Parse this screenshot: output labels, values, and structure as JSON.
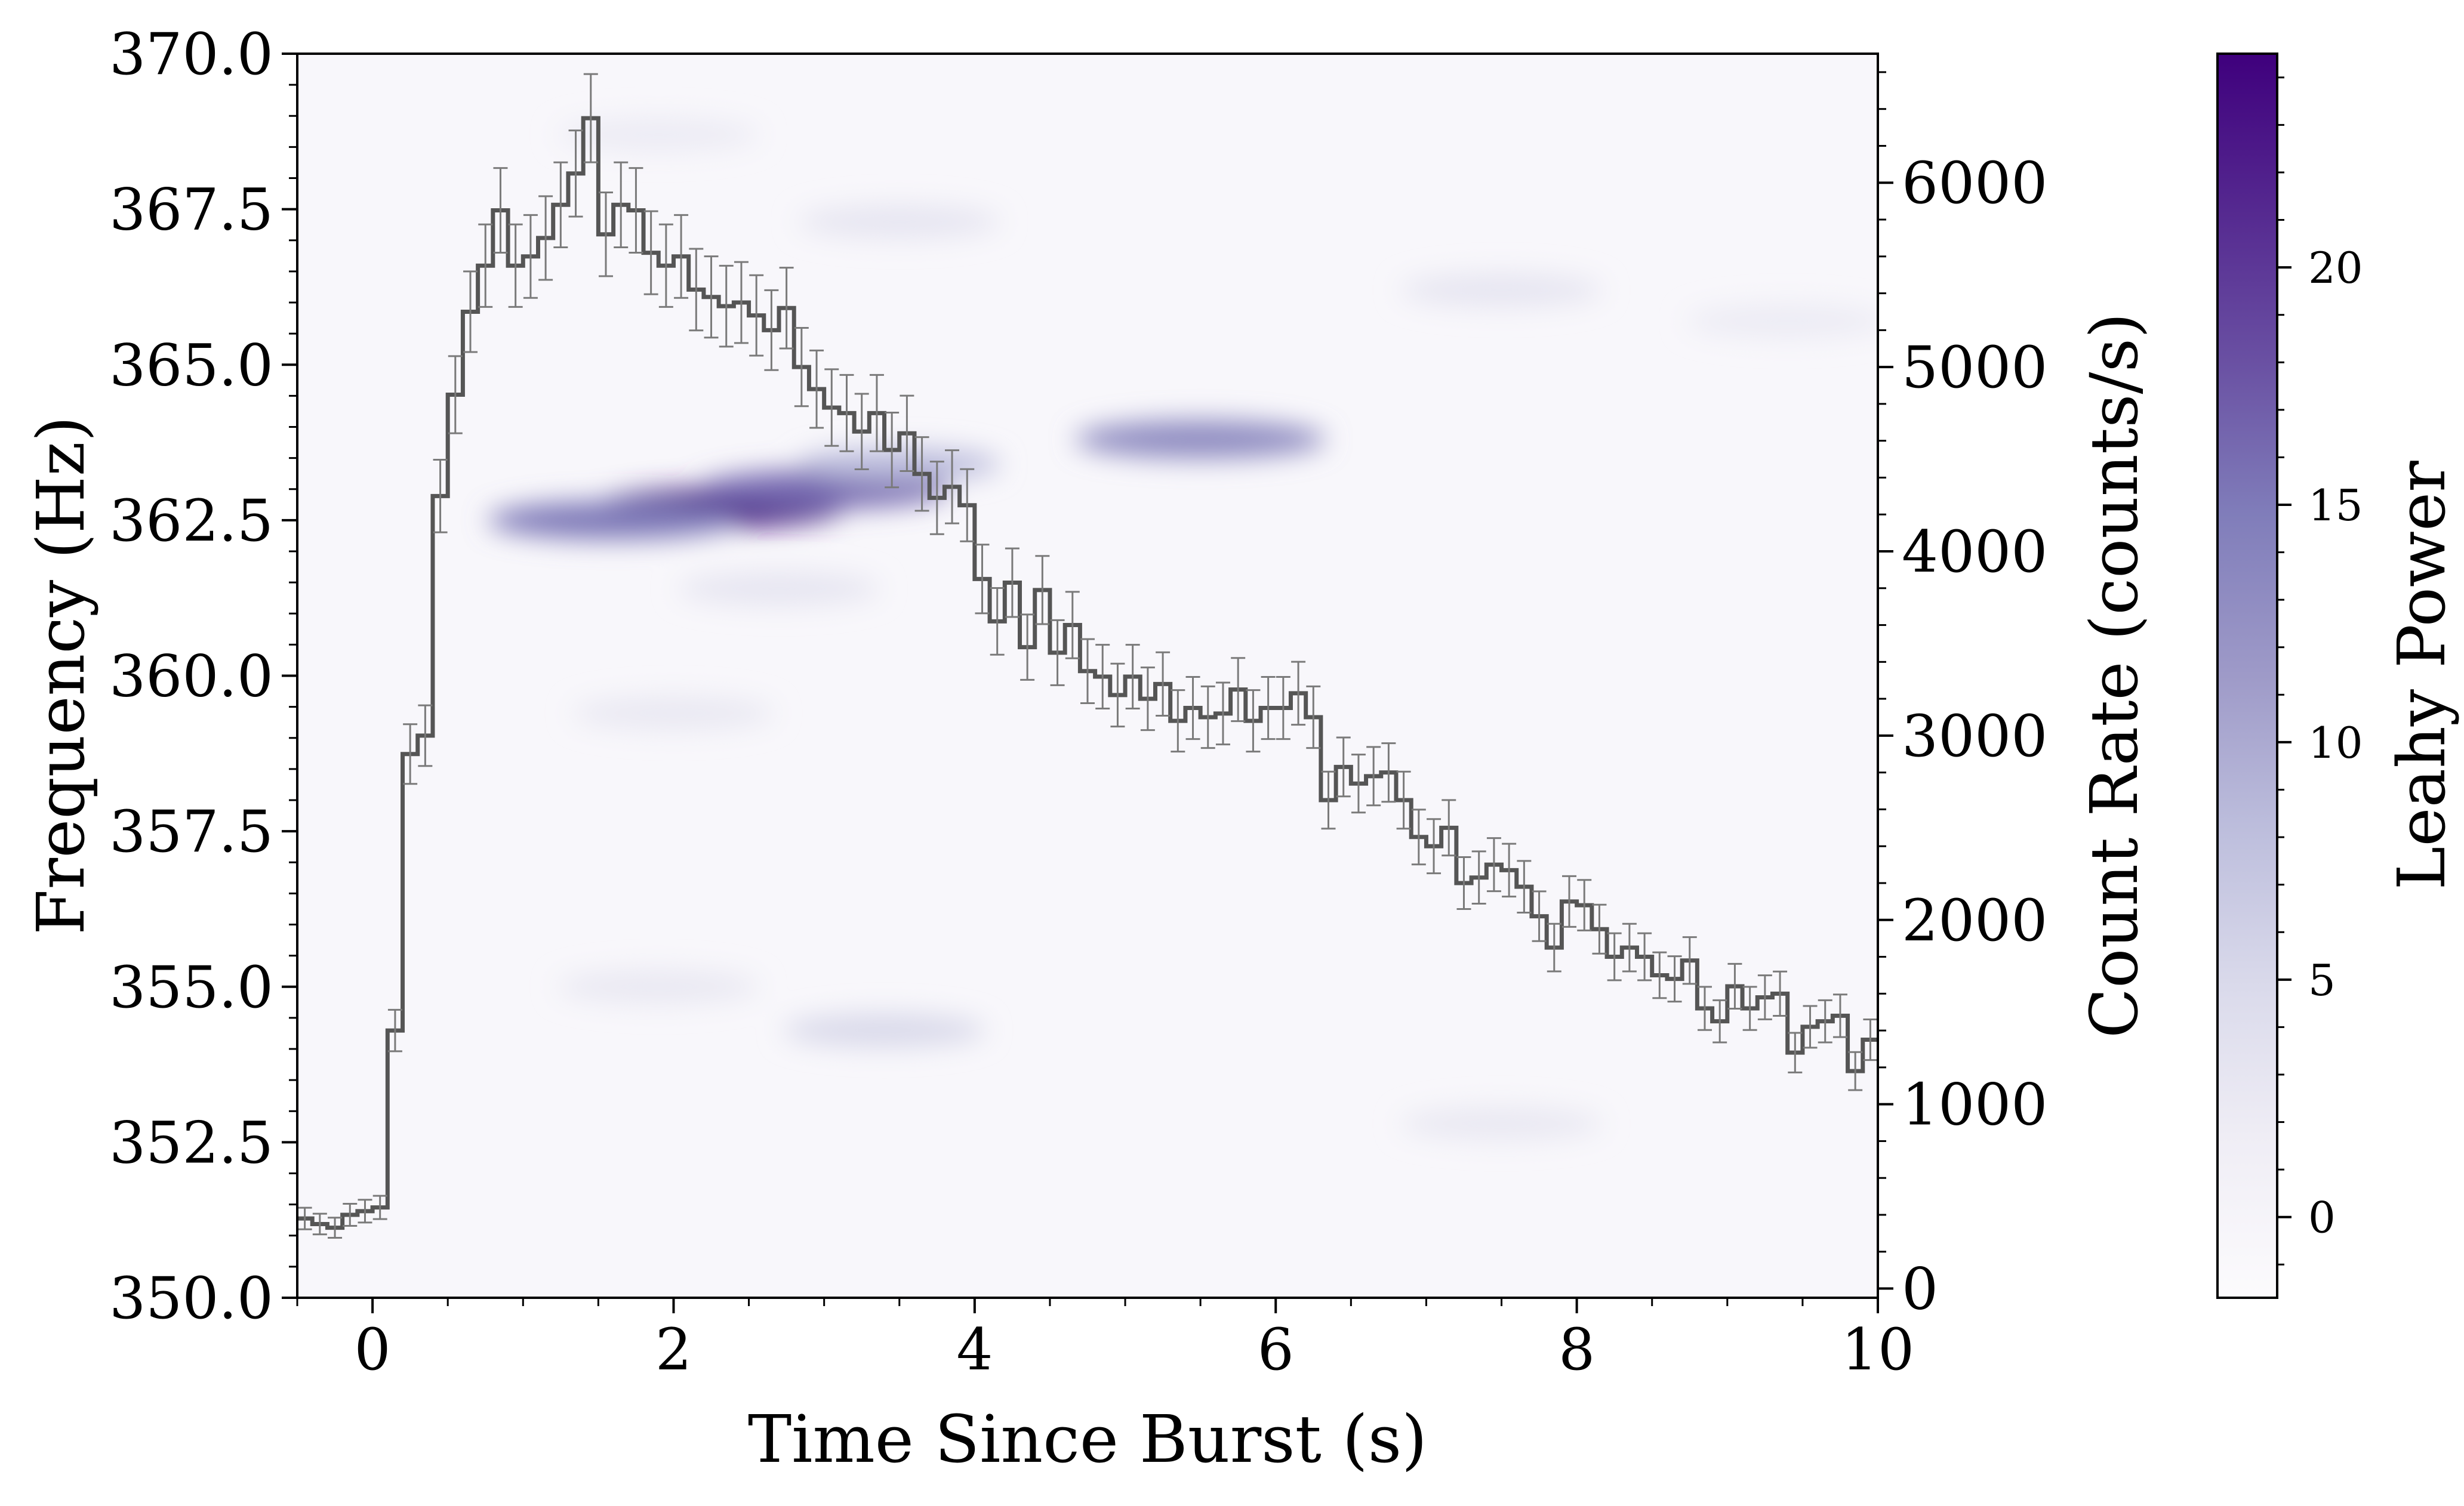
{
  "chart_data": [
    {
      "type": "heatmap",
      "xlabel": "Time Since Burst (s)",
      "ylabel": "Frequency (Hz)",
      "xlim": [
        -0.5,
        10
      ],
      "ylim": [
        350.0,
        370.0
      ],
      "x_ticks": [
        "0",
        "2",
        "4",
        "6",
        "8",
        "10"
      ],
      "y_ticks": [
        "350.0",
        "352.5",
        "355.0",
        "357.5",
        "360.0",
        "362.5",
        "365.0",
        "367.5",
        "370.0"
      ],
      "colormap": "Purples",
      "colorbar": {
        "label": "Leahy Power",
        "range": [
          -1.7,
          24.5
        ],
        "ticks": [
          "0",
          "5",
          "10",
          "15",
          "20"
        ]
      },
      "features": [
        {
          "t": 2.3,
          "f": 362.7,
          "power": 24
        },
        {
          "t": 1.6,
          "f": 362.5,
          "power": 15
        },
        {
          "t": 3.0,
          "f": 363.0,
          "power": 16
        },
        {
          "t": 3.5,
          "f": 363.4,
          "power": 8
        },
        {
          "t": 5.5,
          "f": 363.8,
          "power": 13
        },
        {
          "t": 3.4,
          "f": 354.3,
          "power": 5
        },
        {
          "t": 3.5,
          "f": 367.3,
          "power": 3
        },
        {
          "t": 7.5,
          "f": 366.2,
          "power": 3
        },
        {
          "t": 2.0,
          "f": 359.4,
          "power": 2.5
        },
        {
          "t": 2.7,
          "f": 361.4,
          "power": 3
        },
        {
          "t": 1.9,
          "f": 355.0,
          "power": 2.5
        },
        {
          "t": 7.5,
          "f": 352.8,
          "power": 2.5
        },
        {
          "t": 9.4,
          "f": 365.7,
          "power": 2
        },
        {
          "t": 1.9,
          "f": 368.7,
          "power": 2
        }
      ]
    },
    {
      "type": "line",
      "drawstyle": "steps",
      "ylabel": "Count Rate (counts/s)",
      "ylim": [
        -50,
        6700
      ],
      "y_ticks": [
        "0",
        "1000",
        "2000",
        "3000",
        "4000",
        "5000",
        "6000"
      ],
      "color": "#555555",
      "x": [
        -0.5,
        -0.4,
        -0.3,
        -0.2,
        -0.1,
        0.0,
        0.1,
        0.2,
        0.3,
        0.4,
        0.5,
        0.6,
        0.7,
        0.8,
        0.9,
        1.0,
        1.1,
        1.2,
        1.3,
        1.4,
        1.5,
        1.6,
        1.7,
        1.8,
        1.9,
        2.0,
        2.1,
        2.2,
        2.3,
        2.4,
        2.5,
        2.6,
        2.7,
        2.8,
        2.9,
        3.0,
        3.1,
        3.2,
        3.3,
        3.4,
        3.5,
        3.6,
        3.7,
        3.8,
        3.9,
        4.0,
        4.1,
        4.2,
        4.3,
        4.4,
        4.5,
        4.6,
        4.7,
        4.8,
        4.9,
        5.0,
        5.1,
        5.2,
        5.3,
        5.4,
        5.5,
        5.6,
        5.7,
        5.8,
        5.9,
        6.0,
        6.1,
        6.2,
        6.3,
        6.4,
        6.5,
        6.6,
        6.7,
        6.8,
        6.9,
        7.0,
        7.1,
        7.2,
        7.3,
        7.4,
        7.5,
        7.6,
        7.7,
        7.8,
        7.9,
        8.0,
        8.1,
        8.2,
        8.3,
        8.4,
        8.5,
        8.6,
        8.7,
        8.8,
        8.9,
        9.0,
        9.1,
        9.2,
        9.3,
        9.4,
        9.5,
        9.6,
        9.7,
        9.8,
        9.9
      ],
      "y": [
        380,
        350,
        330,
        400,
        420,
        440,
        1400,
        2900,
        3000,
        4300,
        4850,
        5300,
        5550,
        5850,
        5550,
        5600,
        5700,
        5880,
        6050,
        6350,
        5720,
        5880,
        5850,
        5620,
        5550,
        5600,
        5420,
        5380,
        5330,
        5350,
        5280,
        5200,
        5320,
        5000,
        4880,
        4780,
        4750,
        4650,
        4750,
        4550,
        4640,
        4420,
        4290,
        4350,
        4250,
        3850,
        3620,
        3830,
        3480,
        3790,
        3450,
        3600,
        3350,
        3320,
        3220,
        3320,
        3200,
        3280,
        3080,
        3150,
        3100,
        3120,
        3250,
        3080,
        3150,
        3150,
        3230,
        3100,
        2650,
        2830,
        2740,
        2780,
        2800,
        2650,
        2450,
        2400,
        2500,
        2200,
        2230,
        2300,
        2270,
        2180,
        2020,
        1850,
        2100,
        2080,
        1950,
        1800,
        1850,
        1800,
        1700,
        1680,
        1780,
        1520,
        1450,
        1640,
        1520,
        1580,
        1600,
        1280,
        1420,
        1450,
        1480,
        1180,
        1350
      ]
    }
  ]
}
